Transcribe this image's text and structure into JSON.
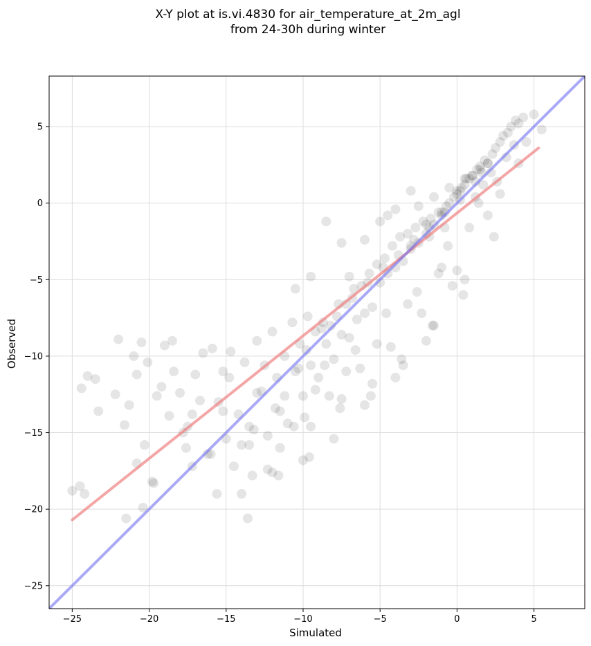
{
  "chart_data": {
    "type": "scatter",
    "title": "X-Y plot at is.vi.4830 for air_temperature_at_2m_agl",
    "subtitle": "from 24-30h during winter",
    "xlabel": "Simulated",
    "ylabel": "Observed",
    "xlim": [
      -26.5,
      8.3
    ],
    "ylim": [
      -26.5,
      8.3
    ],
    "xticks": [
      -25,
      -20,
      -15,
      -10,
      -5,
      0,
      5
    ],
    "yticks": [
      -25,
      -20,
      -15,
      -10,
      -5,
      0,
      5
    ],
    "grid": true,
    "colors": {
      "points": "#000000",
      "fit_line": "#f08080",
      "identity_line": "#7070f0"
    },
    "fit_line": {
      "x": [
        -25.0,
        5.3
      ],
      "y": [
        -20.7,
        3.6
      ]
    },
    "identity_line": {
      "x": [
        -26.5,
        8.3
      ],
      "y": [
        -26.5,
        8.3
      ]
    },
    "points": {
      "x": [
        -25.0,
        -24.5,
        -24.2,
        -24.4,
        -24.0,
        -23.3,
        -23.5,
        -22.0,
        -22.2,
        -21.6,
        -21.3,
        -20.8,
        -20.4,
        -20.8,
        -20.5,
        -21.0,
        -20.3,
        -19.5,
        -19.7,
        -20.1,
        -19.0,
        -18.7,
        -18.4,
        -18.0,
        -17.8,
        -17.5,
        -17.2,
        -17.0,
        -16.7,
        -16.2,
        -15.9,
        -15.5,
        -15.2,
        -15.0,
        -14.7,
        -14.5,
        -14.2,
        -13.8,
        -13.5,
        -13.3,
        -13.0,
        -12.7,
        -12.3,
        -12.0,
        -11.7,
        -11.5,
        -11.2,
        -11.0,
        -10.7,
        -10.5,
        -10.2,
        -10.0,
        -9.7,
        -9.5,
        -9.2,
        -9.0,
        -8.7,
        -8.5,
        -8.2,
        -8.0,
        -7.7,
        -7.5,
        -7.2,
        -7.0,
        -6.7,
        -6.5,
        -6.2,
        -6.0,
        -5.7,
        -5.5,
        -5.2,
        -5.0,
        -4.7,
        -4.5,
        -4.2,
        -4.0,
        -3.7,
        -3.5,
        -3.2,
        -3.0,
        -2.7,
        -2.5,
        -2.2,
        -2.0,
        -1.7,
        -1.5,
        -1.2,
        -1.0,
        -0.7,
        -0.5,
        -0.2,
        0.0,
        0.3,
        0.5,
        0.8,
        1.0,
        1.3,
        1.5,
        1.8,
        2.0,
        2.3,
        2.5,
        2.8,
        3.0,
        3.3,
        3.5,
        3.8,
        4.0,
        4.3,
        4.5,
        5.0,
        5.5,
        -18.5,
        -16.5,
        -14.8,
        -13.0,
        -12.5,
        -10.3,
        -9.8,
        -8.8,
        -7.8,
        -6.8,
        -5.8,
        -4.8,
        -3.8,
        -2.8,
        -1.8,
        -0.8,
        0.2,
        1.2,
        2.2,
        3.2,
        -19.2,
        -17.2,
        -15.2,
        -13.2,
        -11.2,
        -9.2,
        -7.2,
        -5.2,
        -3.2,
        -1.2,
        0.8,
        2.8,
        -14.0,
        -12.0,
        -10.0,
        -8.0,
        -6.0,
        -4.0,
        -2.0,
        0.0,
        2.0,
        4.0,
        -11.5,
        -9.5,
        -7.5,
        -5.5,
        -3.5,
        -1.5,
        0.5,
        -13.5,
        -11.8,
        -9.9,
        -8.3,
        -6.3,
        -4.3,
        -2.3,
        -0.3,
        1.7,
        3.7,
        -16.0,
        -14.0,
        -12.3,
        -10.6,
        -8.6,
        -6.6,
        -4.6,
        -2.6,
        -0.6,
        1.4,
        -21.5,
        -19.8,
        -17.6,
        -15.6,
        -13.6,
        -11.6,
        -9.6,
        -7.6,
        -5.6,
        -3.6,
        -1.6,
        0.4,
        2.4,
        -7.0,
        -6.0,
        -5.0,
        -4.0,
        -3.0,
        -2.0,
        -1.0,
        0.0,
        1.0,
        2.0,
        -2.5,
        -1.5,
        -0.5,
        0.5,
        1.5,
        -1.8,
        -0.8,
        0.2,
        1.2,
        -8.5,
        -7.5,
        -9.5,
        -10.5,
        -3.0,
        -4.5,
        -1.0,
        0.6,
        1.6,
        2.6
      ],
      "y": [
        -18.8,
        -18.5,
        -19.0,
        -12.1,
        -11.3,
        -13.6,
        -11.5,
        -8.9,
        -12.5,
        -14.5,
        -13.2,
        -17.0,
        -19.9,
        -11.2,
        -9.1,
        -10.0,
        -15.8,
        -12.6,
        -18.3,
        -10.4,
        -9.3,
        -13.9,
        -11.0,
        -12.4,
        -15.0,
        -14.6,
        -17.2,
        -11.2,
        -12.9,
        -16.4,
        -9.5,
        -13.0,
        -11.0,
        -15.4,
        -9.7,
        -17.2,
        -13.8,
        -10.4,
        -14.6,
        -17.8,
        -9.0,
        -12.3,
        -15.2,
        -8.4,
        -11.4,
        -13.6,
        -10.0,
        -14.4,
        -7.8,
        -11.0,
        -9.2,
        -12.6,
        -7.4,
        -10.6,
        -8.4,
        -11.4,
        -7.8,
        -9.2,
        -8.0,
        -10.2,
        -6.6,
        -8.6,
        -6.6,
        -8.8,
        -5.6,
        -7.6,
        -5.4,
        -7.2,
        -4.6,
        -6.8,
        -4.0,
        -5.2,
        -3.6,
        -4.6,
        -2.8,
        -4.2,
        -2.2,
        -3.8,
        -2.0,
        -3.0,
        -1.6,
        -2.6,
        -1.2,
        -2.0,
        -1.0,
        -1.4,
        -0.6,
        -0.8,
        -0.2,
        0.0,
        0.4,
        0.6,
        1.0,
        1.2,
        1.6,
        1.8,
        2.2,
        2.4,
        2.8,
        2.6,
        3.2,
        3.6,
        4.0,
        4.4,
        4.6,
        5.0,
        5.4,
        5.2,
        5.6,
        4.0,
        5.8,
        4.8,
        -9.0,
        -9.8,
        -11.4,
        -12.4,
        -10.6,
        -10.8,
        -9.6,
        -8.2,
        -7.4,
        -6.2,
        -5.2,
        -4.2,
        -3.4,
        -2.4,
        -1.6,
        -0.6,
        0.2,
        1.4,
        2.0,
        3.0,
        -12.0,
        -13.8,
        -13.6,
        -14.8,
        -12.6,
        -12.2,
        -11.0,
        -9.2,
        -6.6,
        -4.6,
        -1.6,
        0.6,
        -19.0,
        -17.6,
        -16.8,
        -15.4,
        -13.2,
        -11.4,
        -9.0,
        -4.4,
        -0.8,
        2.6,
        -16.0,
        -14.6,
        -12.8,
        -11.8,
        -10.6,
        -8.0,
        -5.0,
        -15.8,
        -13.4,
        -14.0,
        -12.6,
        -10.8,
        -9.4,
        -7.2,
        -5.4,
        1.2,
        3.8,
        -16.4,
        -15.8,
        -17.4,
        -14.6,
        -10.6,
        -9.6,
        -7.2,
        -5.8,
        -2.8,
        0.0,
        -20.6,
        -18.2,
        -16.0,
        -19.0,
        -20.6,
        -17.8,
        -16.6,
        -13.4,
        -12.6,
        -10.2,
        -8.0,
        -6.0,
        -2.2,
        -4.8,
        -2.4,
        -1.2,
        -0.4,
        -2.8,
        -1.4,
        -0.6,
        0.8,
        1.8,
        2.6,
        -0.2,
        0.4,
        1.0,
        1.6,
        2.2,
        -2.2,
        -1.6,
        0.8,
        0.4,
        -1.2,
        -2.6,
        -4.8,
        -5.6,
        0.8,
        -0.8,
        -4.2,
        1.6,
        2.0,
        1.4
      ]
    }
  }
}
